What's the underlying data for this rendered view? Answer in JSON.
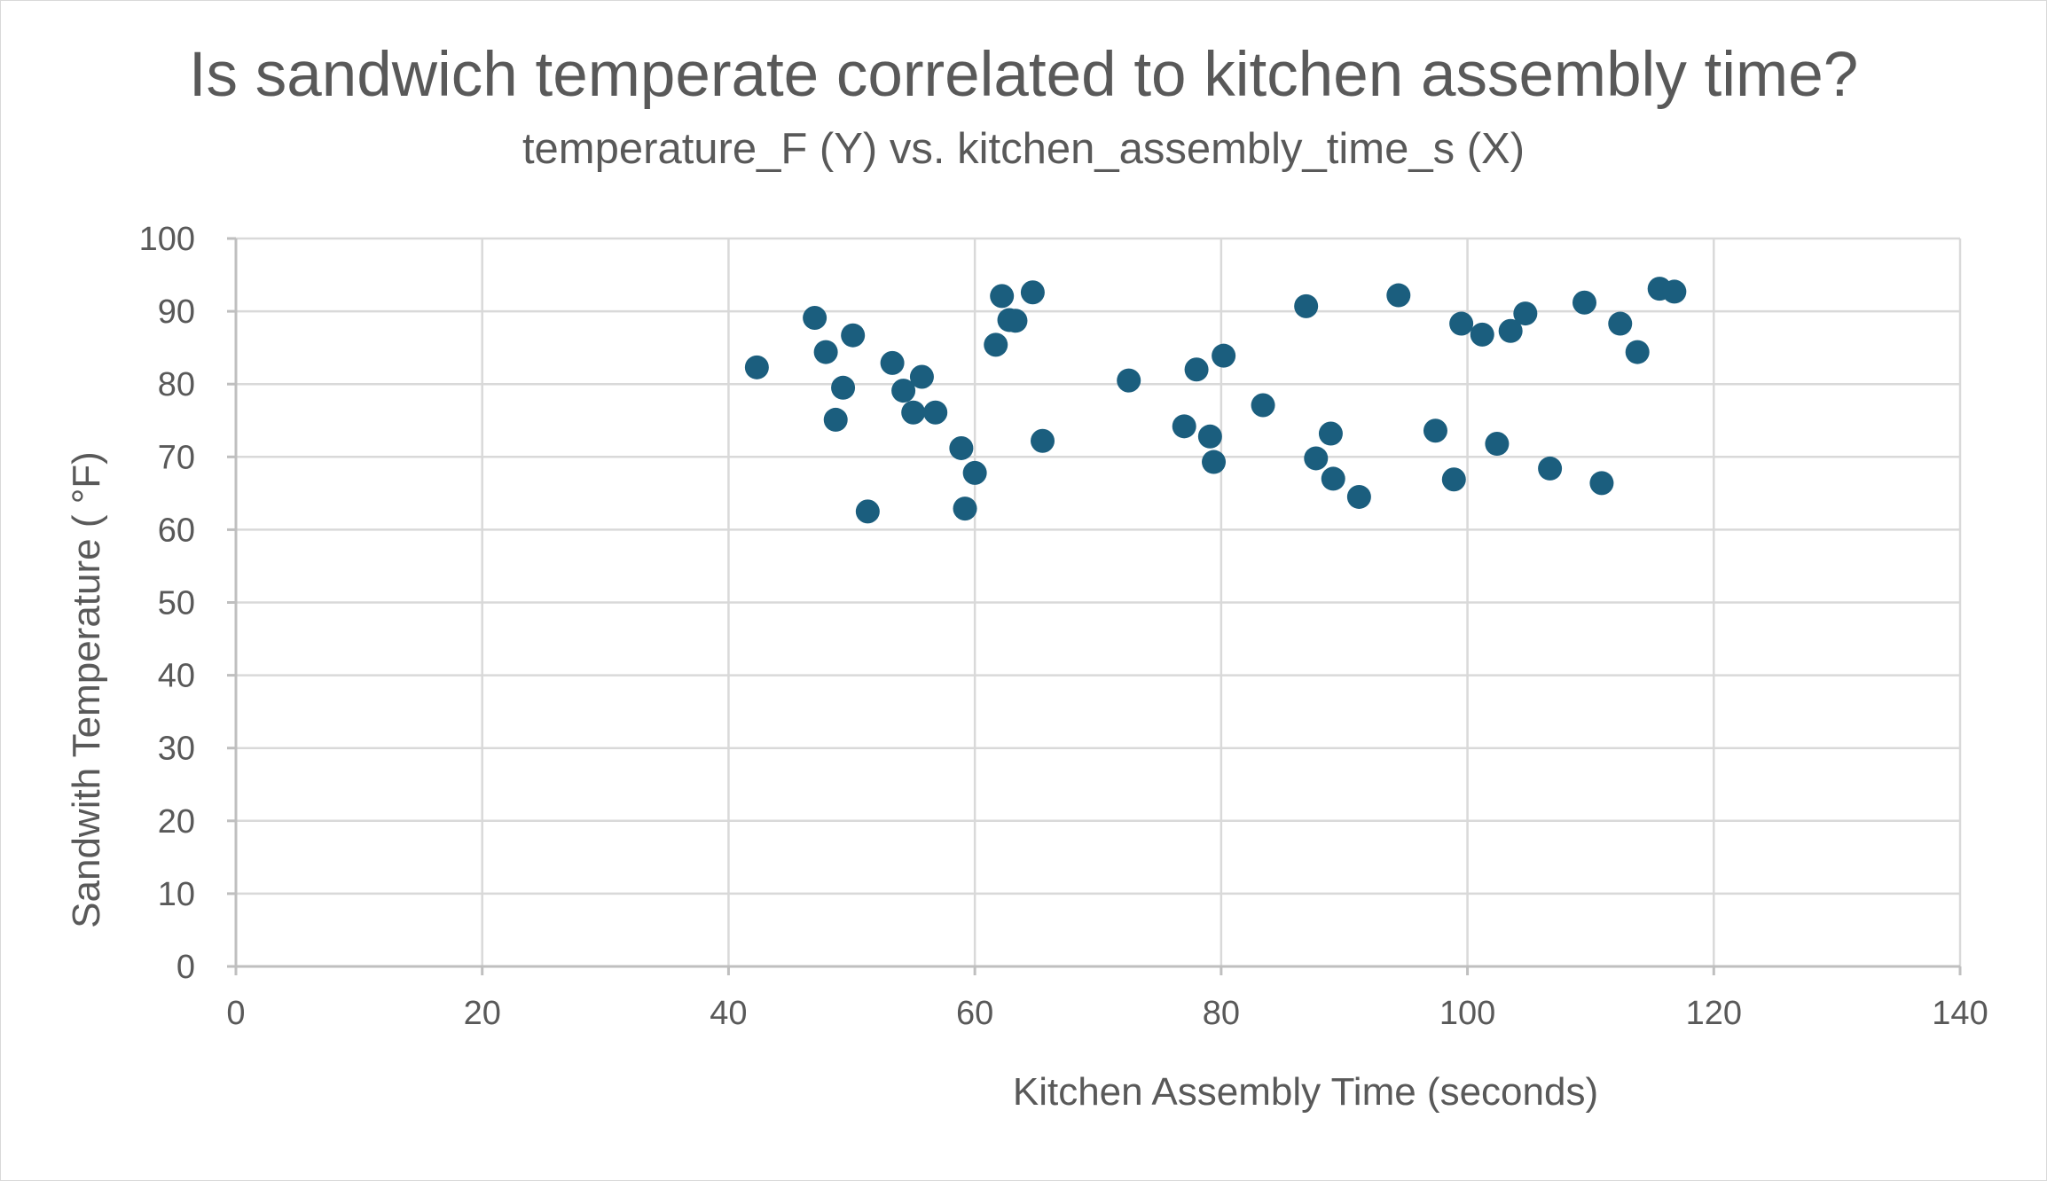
{
  "chart_data": {
    "type": "scatter",
    "title": "Is sandwich temperate correlated to kitchen assembly time?",
    "subtitle": "temperature_F (Y) vs. kitchen_assembly_time_s (X)",
    "xlabel": "Kitchen Assembly Time (seconds)",
    "ylabel": "Sandwith Temperature ( °F)",
    "xlim": [
      0,
      140
    ],
    "ylim": [
      0,
      100
    ],
    "xticks": [
      0,
      20,
      40,
      60,
      80,
      100,
      120,
      140
    ],
    "yticks": [
      0,
      10,
      20,
      30,
      40,
      50,
      60,
      70,
      80,
      90,
      100
    ],
    "grid": true,
    "marker_color": "#1b5e7e",
    "series": [
      {
        "name": "temperature_F",
        "x": [
          42.3,
          47.0,
          47.9,
          48.7,
          49.3,
          50.1,
          51.3,
          53.3,
          54.2,
          55.0,
          55.7,
          56.8,
          58.9,
          59.2,
          60.0,
          61.7,
          62.2,
          62.8,
          63.3,
          64.7,
          65.5,
          72.5,
          77.0,
          78.0,
          79.1,
          79.4,
          80.2,
          83.4,
          86.9,
          87.7,
          88.9,
          89.1,
          91.2,
          94.4,
          97.4,
          98.9,
          99.5,
          101.2,
          102.4,
          103.5,
          104.7,
          106.7,
          109.5,
          110.9,
          112.4,
          113.8,
          115.6,
          116.8
        ],
        "y": [
          82.3,
          89.1,
          84.4,
          75.1,
          79.5,
          86.7,
          62.5,
          82.9,
          79.1,
          76.1,
          81.0,
          76.1,
          71.2,
          62.9,
          67.8,
          85.4,
          92.1,
          88.8,
          88.7,
          92.6,
          72.2,
          80.5,
          74.2,
          82.0,
          72.8,
          69.3,
          83.9,
          77.1,
          90.7,
          69.8,
          73.2,
          67.0,
          64.5,
          92.2,
          73.6,
          66.9,
          88.3,
          86.8,
          71.8,
          87.3,
          89.7,
          68.4,
          91.2,
          66.4,
          88.3,
          84.4,
          93.1,
          92.7
        ]
      }
    ]
  }
}
